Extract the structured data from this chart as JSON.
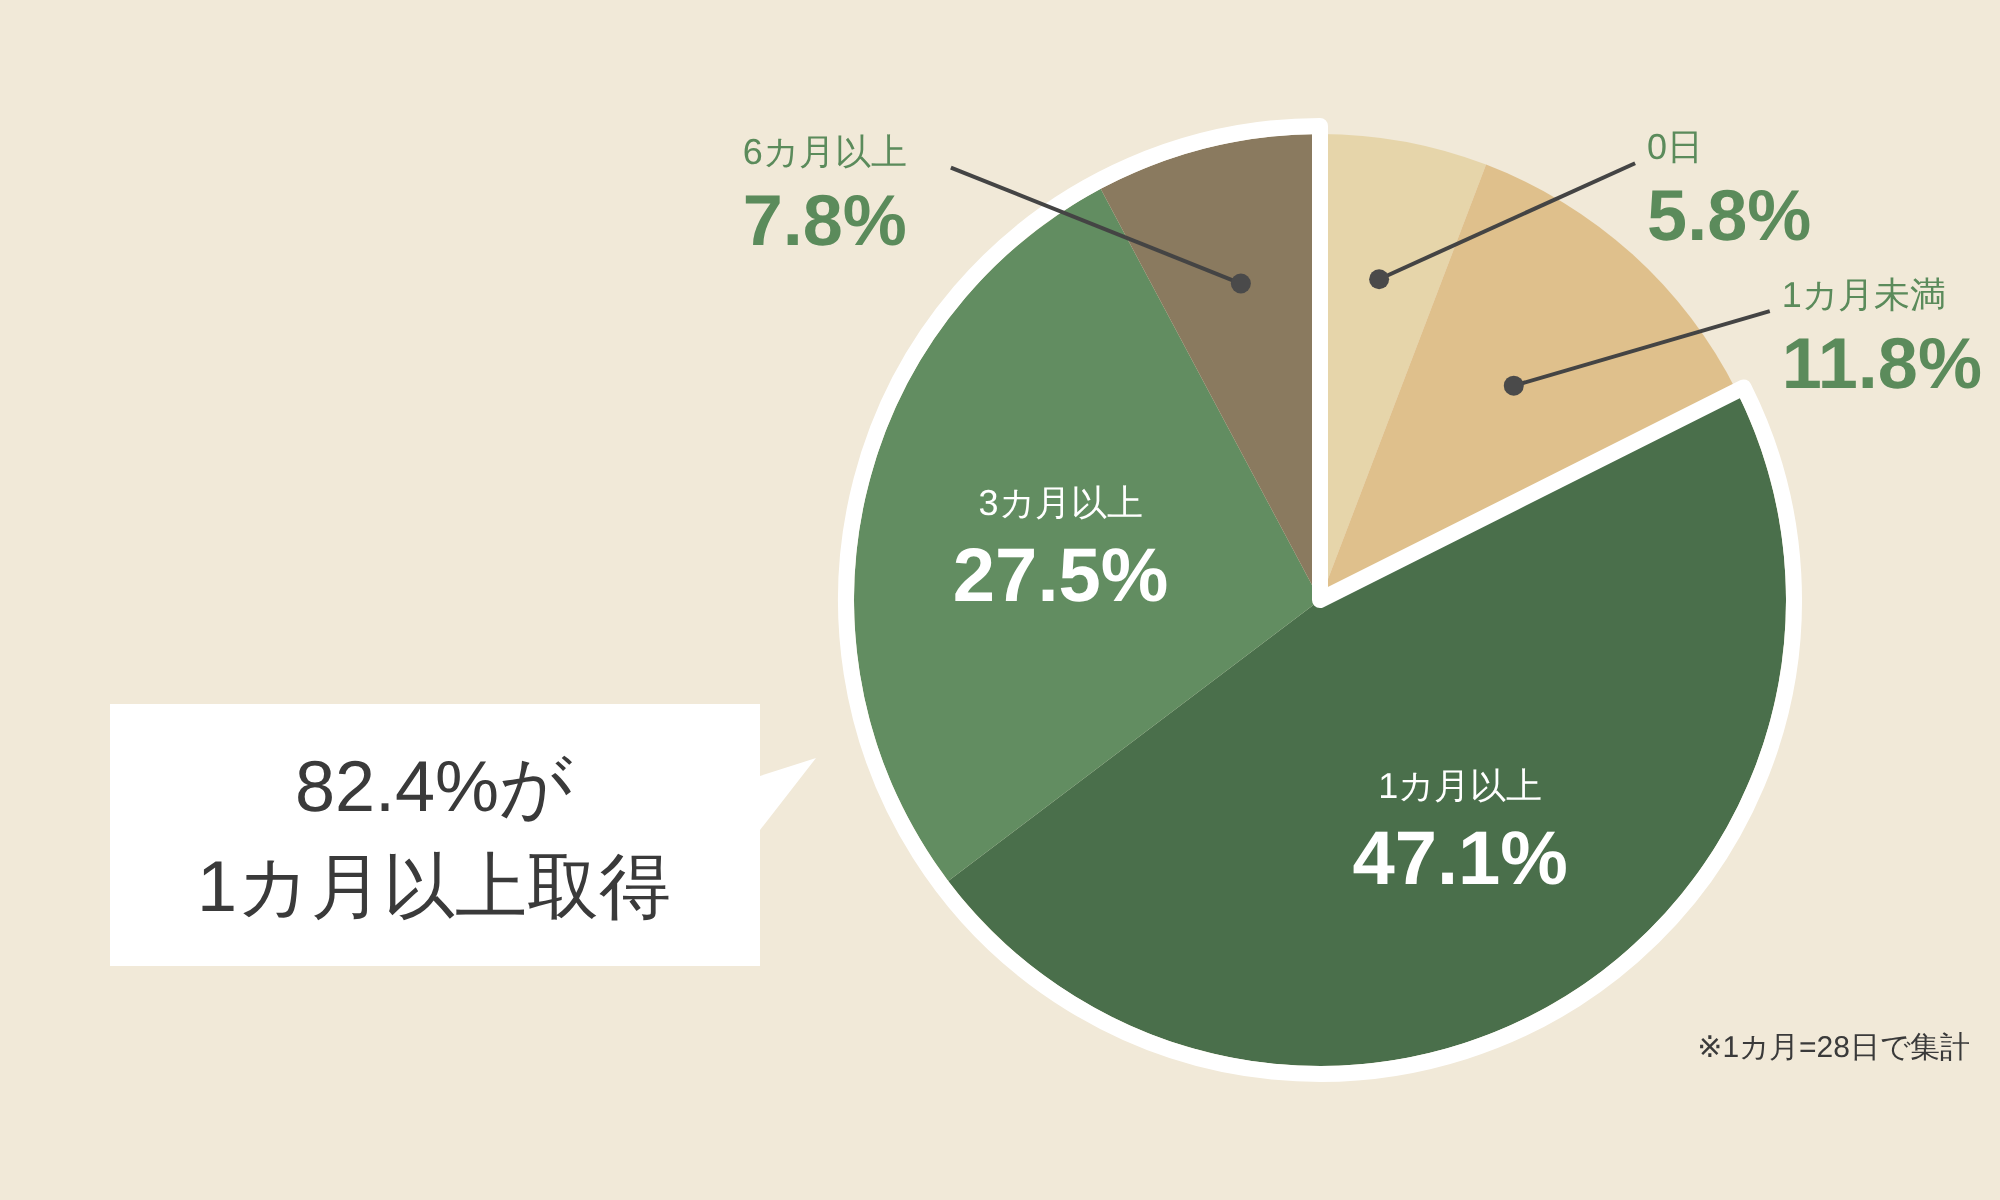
{
  "chart_data": {
    "type": "pie",
    "categories": [
      "0日",
      "1カ月未満",
      "1カ月以上",
      "3カ月以上",
      "6カ月以上"
    ],
    "values": [
      5.8,
      11.8,
      47.1,
      27.5,
      7.8
    ],
    "colors": [
      "#e6d5aa",
      "#dfc08c",
      "#4a6f4b",
      "#628d61",
      "#8a7a5f"
    ],
    "value_labels": [
      "5.8%",
      "11.8%",
      "47.1%",
      "27.5%",
      "7.8%"
    ],
    "annotations": [
      "82.4%が\n1カ月以上取得",
      "※1カ月=28日で集計"
    ]
  }
}
